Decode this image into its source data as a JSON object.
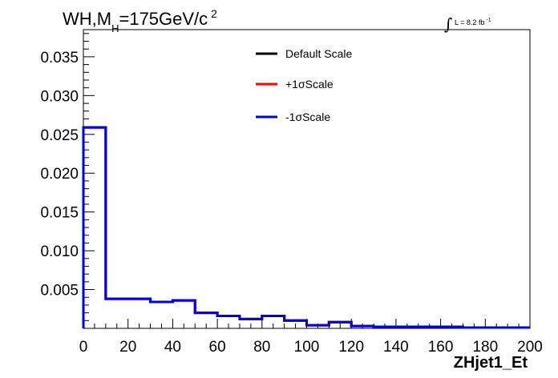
{
  "chart_data": {
    "type": "line",
    "style": "step-histogram",
    "title": {
      "prefix": "WH,M",
      "subscript": "H",
      "main": "=175GeV/c",
      "superscript": "2"
    },
    "lumi": {
      "integral_symbol": "∫",
      "text": "L = 8.2 fb",
      "superscript": "-1"
    },
    "xlabel": "ZHjet1_Et",
    "ylabel": "",
    "xlim": [
      0,
      200
    ],
    "ylim": [
      0,
      0.0385
    ],
    "x_ticks": [
      "0",
      "20",
      "40",
      "60",
      "80",
      "100",
      "120",
      "140",
      "160",
      "180",
      "200"
    ],
    "y_ticks": [
      "0.005",
      "0.010",
      "0.015",
      "0.020",
      "0.025",
      "0.030",
      "0.035"
    ],
    "grid": false,
    "legend_position": "top-center",
    "bin_edges": [
      0,
      10,
      20,
      30,
      40,
      50,
      60,
      70,
      80,
      90,
      100,
      110,
      120,
      130,
      140,
      150,
      160,
      170,
      180,
      190,
      200
    ],
    "series": [
      {
        "name": "Default Scale",
        "color": "#000000",
        "values": [
          0.0259,
          0.0038,
          0.0038,
          0.0034,
          0.0036,
          0.002,
          0.0016,
          0.0012,
          0.0016,
          0.001,
          0.0004,
          0.0008,
          0.0003,
          0.0002,
          0.0002,
          0.0002,
          0.0002,
          0.0001,
          0.0001,
          0.0001
        ]
      },
      {
        "name": "+1σScale",
        "color": "#ff0000",
        "values": [
          0.0259,
          0.0038,
          0.0038,
          0.0034,
          0.0036,
          0.002,
          0.0016,
          0.0012,
          0.0016,
          0.001,
          0.0004,
          0.0008,
          0.0003,
          0.0002,
          0.0002,
          0.0002,
          0.0002,
          0.0001,
          0.0001,
          0.0001
        ]
      },
      {
        "name": "-1σScale",
        "color": "#0000ee",
        "values": [
          0.0259,
          0.0038,
          0.0038,
          0.0034,
          0.0036,
          0.002,
          0.0016,
          0.0012,
          0.0016,
          0.001,
          0.0004,
          0.0008,
          0.0003,
          0.0002,
          0.0002,
          0.0002,
          0.0002,
          0.0001,
          0.0001,
          0.0001
        ]
      }
    ]
  }
}
